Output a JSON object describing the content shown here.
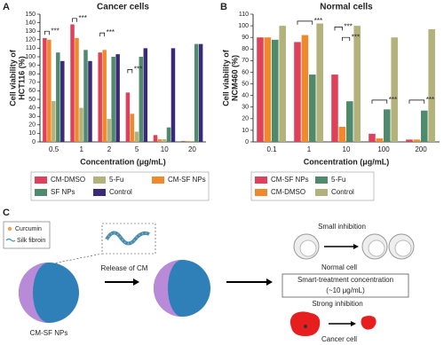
{
  "panels": [
    "A",
    "B",
    "C"
  ],
  "chart_data": [
    {
      "type": "bar",
      "title": "Cancer cells",
      "xlabel": "Concentration (μg/mL)",
      "ylabel": [
        "Cell viability of",
        "HCT116 (%)"
      ],
      "categories": [
        "0.5",
        "1",
        "2",
        "5",
        "10",
        "20"
      ],
      "series": [
        {
          "name": "CM-DMSO",
          "color": "#e0415a",
          "values": [
            122,
            138,
            105,
            58,
            8,
            1
          ]
        },
        {
          "name": "CM-SF NPs",
          "color": "#f0892c",
          "values": [
            120,
            122,
            108,
            33,
            3,
            1
          ]
        },
        {
          "name": "5-Fu",
          "color": "#b3b27c",
          "values": [
            48,
            40,
            27,
            12,
            3,
            1
          ]
        },
        {
          "name": "SF NPs",
          "color": "#4f8a6c",
          "values": [
            105,
            108,
            100,
            100,
            17,
            115
          ]
        },
        {
          "name": "Control",
          "color": "#3b2a78",
          "values": [
            95,
            95,
            103,
            110,
            110,
            115
          ]
        }
      ],
      "ylim": [
        0,
        150
      ],
      "yticks": [
        0,
        10,
        20,
        30,
        40,
        50,
        60,
        70,
        80,
        90,
        100,
        110,
        120,
        130,
        140,
        150
      ],
      "annotations": [
        "***",
        "***",
        "***",
        "***"
      ]
    },
    {
      "type": "bar",
      "title": "Normal cells",
      "xlabel": "Concentration (μg/mL)",
      "ylabel": [
        "Cell viability of",
        "NCM460 (%)"
      ],
      "categories": [
        "0.1",
        "1",
        "10",
        "100",
        "200"
      ],
      "series": [
        {
          "name": "CM-SF NPs",
          "color": "#e0415a",
          "values": [
            90,
            86,
            58,
            7,
            2
          ]
        },
        {
          "name": "CM-DMSO",
          "color": "#f0892c",
          "values": [
            90,
            92,
            13,
            3,
            2
          ]
        },
        {
          "name": "5-Fu",
          "color": "#4f8a6c",
          "values": [
            88,
            58,
            35,
            28,
            27
          ]
        },
        {
          "name": "Control",
          "color": "#b3b27c",
          "values": [
            100,
            102,
            100,
            90,
            97
          ]
        }
      ],
      "ylim": [
        0,
        110
      ],
      "yticks": [
        0,
        10,
        20,
        30,
        40,
        50,
        60,
        70,
        80,
        90,
        100,
        110
      ],
      "annotations": [
        "***",
        "***",
        "***",
        "***",
        "***"
      ]
    }
  ],
  "diagram": {
    "curcumin": "Curcumin",
    "silk_fibroin": "Silk fibroin",
    "release": "Release of CM",
    "nps": "CM-SF NPs",
    "small_inhibition": "Small inhibition",
    "normal_cell": "Normal cell",
    "smart": "Smart-treatment concentration",
    "smart_conc": "(~10 μg/mL)",
    "strong_inhibition": "Strong inhibition",
    "cancer_cell": "Cancer cell"
  }
}
